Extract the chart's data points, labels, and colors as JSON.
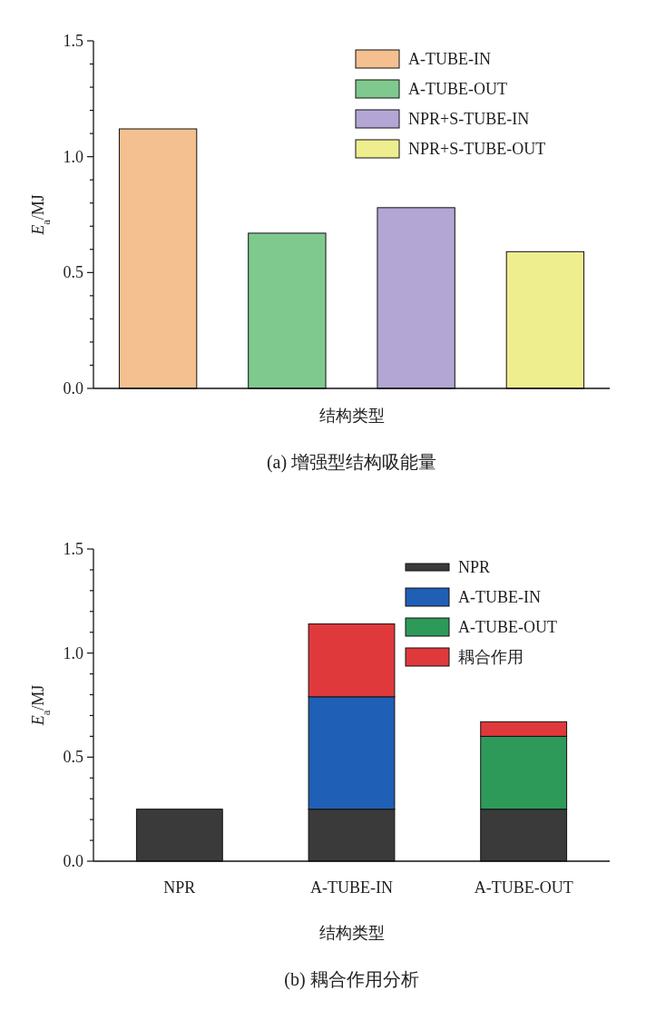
{
  "chart_data": [
    {
      "type": "bar",
      "title": "(a)  增强型结构吸能量",
      "xlabel": "结构类型",
      "ylabel": "*E*$_{a}$/MJ",
      "categories": [
        null,
        null,
        null,
        null
      ],
      "yticks": [
        {
          "value": 0,
          "label": "0.0"
        },
        {
          "value": 0.1,
          "label": null
        },
        {
          "value": 0.2,
          "label": null
        },
        {
          "value": 0.3,
          "label": null
        },
        {
          "value": 0.4,
          "label": null
        },
        {
          "value": 0.5,
          "label": "0.5"
        },
        {
          "value": 0.6,
          "label": null
        },
        {
          "value": 0.7,
          "label": null
        },
        {
          "value": 0.8,
          "label": null
        },
        {
          "value": 0.9,
          "label": null
        },
        {
          "value": 1,
          "label": "1.0"
        },
        {
          "value": 1.1,
          "label": null
        },
        {
          "value": 1.2,
          "label": null
        },
        {
          "value": 1.3,
          "label": null
        },
        {
          "value": 1.4,
          "label": null
        },
        {
          "value": 1.5,
          "label": "1.5"
        }
      ],
      "series": [
        {
          "name": "A-TUBE-IN",
          "color": "#f4c08f",
          "values": [
            1.12,
            null,
            null,
            null
          ]
        },
        {
          "name": "A-TUBE-OUT",
          "color": "#7fc98f",
          "values": [
            null,
            0.67,
            null,
            null
          ]
        },
        {
          "name": "NPR+S-TUBE-IN",
          "color": "#b4a6d4",
          "values": [
            null,
            null,
            0.78,
            null
          ]
        },
        {
          "name": "NPR+S-TUBE-OUT",
          "color": "#eeee8f",
          "values": [
            null,
            null,
            null,
            0.59
          ]
        }
      ],
      "ylim": [
        0,
        1.5
      ],
      "legend": "top right"
    },
    {
      "type": "bar",
      "stacked": true,
      "title": "(b)  耦合作用分析",
      "xlabel": "结构类型",
      "ylabel": "*E*$_{a}$/MJ",
      "categories": [
        "NPR",
        "A-TUBE-IN",
        "A-TUBE-OUT"
      ],
      "yticks": [
        {
          "value": 0,
          "label": "0.0"
        },
        {
          "value": 0.1,
          "label": null
        },
        {
          "value": 0.2,
          "label": null
        },
        {
          "value": 0.3,
          "label": null
        },
        {
          "value": 0.4,
          "label": null
        },
        {
          "value": 0.5,
          "label": "0.5"
        },
        {
          "value": 0.6,
          "label": null
        },
        {
          "value": 0.7,
          "label": null
        },
        {
          "value": 0.8,
          "label": null
        },
        {
          "value": 0.9,
          "label": null
        },
        {
          "value": 1,
          "label": "1.0"
        },
        {
          "value": 1.1,
          "label": null
        },
        {
          "value": 1.2,
          "label": null
        },
        {
          "value": 1.3,
          "label": null
        },
        {
          "value": 1.4,
          "label": null
        },
        {
          "value": 1.5,
          "label": "1.5"
        }
      ],
      "series": [
        {
          "name": "NPR",
          "color": "#3a3a3a",
          "values": [
            0.25,
            0.25,
            0.25
          ]
        },
        {
          "name": "A-TUBE-IN",
          "color": "#1f5fb5",
          "values": [
            null,
            0.54,
            null
          ]
        },
        {
          "name": "A-TUBE-OUT",
          "color": "#2e9a5a",
          "values": [
            null,
            null,
            0.35
          ]
        },
        {
          "name": "耦合作用",
          "color": "#e0393c",
          "values": [
            null,
            0.35,
            0.07
          ]
        }
      ],
      "ylim": [
        0,
        1.5
      ],
      "legend": "top right"
    }
  ]
}
